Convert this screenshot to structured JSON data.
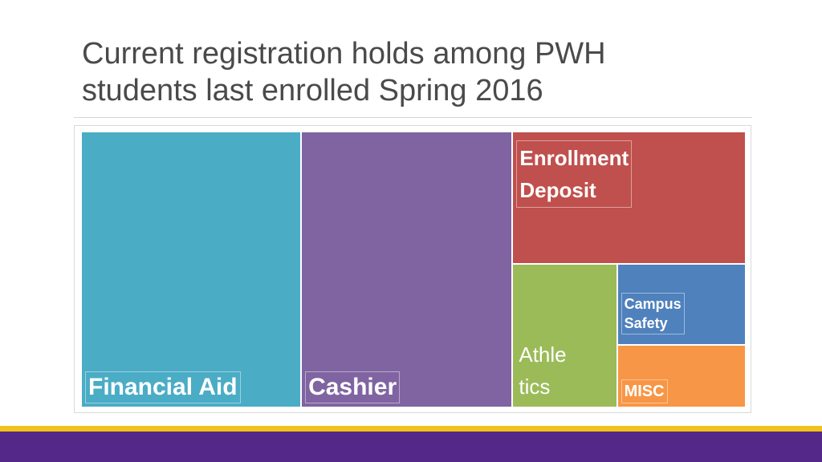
{
  "slide": {
    "title_line1": "Current registration holds among PWH",
    "title_line2": "students last enrolled Spring 2016"
  },
  "chart_data": {
    "type": "treemap",
    "title": "",
    "categories": [
      {
        "name": "Financial Aid",
        "label_lines": [
          "Financial Aid"
        ],
        "value": 33.1,
        "color": "#4bacc6"
      },
      {
        "name": "Cashier",
        "label_lines": [
          "Cashier"
        ],
        "value": 31.8,
        "color": "#8064a2"
      },
      {
        "name": "Enrollment Deposit",
        "label_lines": [
          "Enrollment",
          "Deposit"
        ],
        "value": 16.8,
        "color": "#c0504d"
      },
      {
        "name": "Athletics",
        "label_lines": [
          "Athle",
          "tics"
        ],
        "value": 8.2,
        "color": "#9bbb59"
      },
      {
        "name": "Campus Safety",
        "label_lines": [
          "Campus",
          "Safety"
        ],
        "value": 5.7,
        "color": "#4f81bd"
      },
      {
        "name": "MISC",
        "label_lines": [
          "MISC"
        ],
        "value": 4.4,
        "color": "#f79646"
      }
    ]
  },
  "theme": {
    "footer_gold": "#f2c21b",
    "footer_purple": "#532888"
  }
}
